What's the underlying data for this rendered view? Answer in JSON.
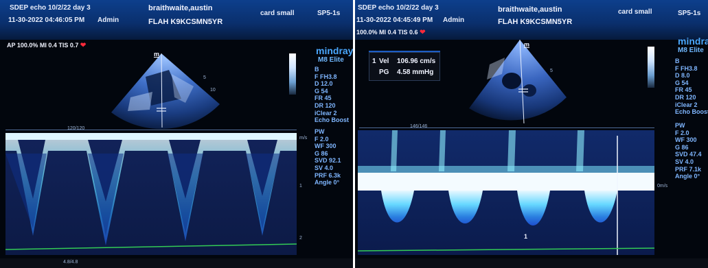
{
  "left": {
    "header": {
      "study": "SDEP echo 10/2/22 day 3",
      "datetime": "11-30-2022 04:46:05 PM",
      "operator": "Admin",
      "patient_name": "braithwaite,austin",
      "patient_id": "FLAH K9KCSMN5YR",
      "preset": "card small",
      "probe": "SP5-1s"
    },
    "power_line": "AP 100.0% MI 0.4 TIS 0.7",
    "brand": "mindray",
    "model": "M8 Elite",
    "b_params": [
      "B",
      "F FH3.8",
      "D 12.0",
      "G 54",
      "FR 45",
      "DR 120",
      "iClear 2",
      "Echo Boost"
    ],
    "pw_params": [
      "PW",
      "F 2.0",
      "WF 300",
      "G 86",
      "SVD 92.1",
      "SV 4.0",
      "PRF 6.3k",
      "Angle 0°"
    ],
    "marker_m": "m",
    "sweep_label": "120/120",
    "bottom_label": "4.8/4.8",
    "velocity_unit": "m/s",
    "scale_ticks": [
      "1",
      "2"
    ],
    "depth_ticks": [
      "5",
      "10"
    ]
  },
  "right": {
    "header": {
      "study": "SDEP echo 10/2/22 day 3",
      "datetime": "11-30-2022 04:45:49 PM",
      "operator": "Admin",
      "patient_name": "braithwaite,austin",
      "patient_id": "FLAH K9KCSMN5YR",
      "preset": "card small",
      "probe": "SP5-1s"
    },
    "power_line": "100.0% MI 0.4 TIS 0.6",
    "brand": "mindray",
    "model": "M8 Elite",
    "b_params": [
      "B",
      "F FH3.8",
      "D 8.0",
      "G 54",
      "FR 45",
      "DR 120",
      "iClear 2",
      "Echo Boost"
    ],
    "pw_params": [
      "PW",
      "F 2.0",
      "WF 300",
      "G 86",
      "SVD 47.4",
      "SV 4.0",
      "PRF 7.1k",
      "Angle 0°"
    ],
    "measurement": {
      "index": "1",
      "vel_label": "Vel",
      "vel_value": "106.96 cm/s",
      "pg_label": "PG",
      "pg_value": "4.58 mmHg"
    },
    "marker_m": "m",
    "sweep_label": "146/146",
    "velocity_unit": "0m/s",
    "cursor_label": "1",
    "depth_ticks": [
      "5"
    ]
  },
  "colors": {
    "header_blue": "#0d3f8c",
    "doppler_cyan": "#7fe8ff",
    "doppler_blue": "#1e4fd0",
    "heart_red": "#ff2a3a",
    "baseline_green": "#33cc55"
  }
}
